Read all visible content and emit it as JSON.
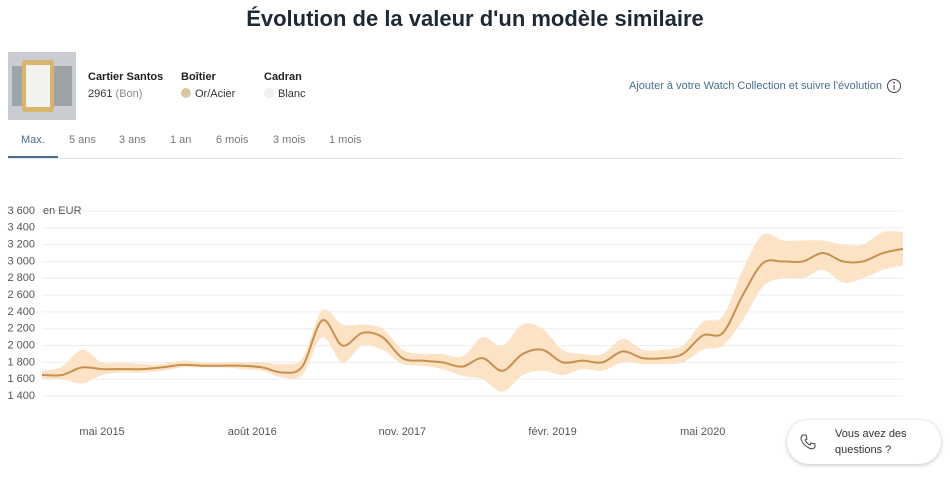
{
  "header": {
    "title": "Évolution de la valeur d'un modèle similaire"
  },
  "watch": {
    "model": "Cartier Santos",
    "reference": "2961",
    "condition": "(Bon)",
    "case_label": "Boîtier",
    "case_value": "Or/Acier",
    "dial_label": "Cadran",
    "dial_value": "Blanc"
  },
  "collection_link": "Ajouter à votre Watch Collection et suivre l'évolution",
  "tabs": {
    "items": [
      "Max.",
      "5 ans",
      "3 ans",
      "1 an",
      "6 mois",
      "3 mois",
      "1 mois"
    ],
    "active": 0
  },
  "chart": {
    "type": "line",
    "unit_label": "en EUR",
    "x": [
      "2014-11",
      "2015-01",
      "2015-03",
      "2015-05",
      "2015-07",
      "2015-09",
      "2015-11",
      "2016-01",
      "2016-03",
      "2016-05",
      "2016-07",
      "2016-09",
      "2016-11",
      "2017-01",
      "2017-03",
      "2017-05",
      "2017-07",
      "2017-09",
      "2017-11",
      "2018-01",
      "2018-03",
      "2018-05",
      "2018-07",
      "2018-09",
      "2018-11",
      "2019-01",
      "2019-03",
      "2019-05",
      "2019-07",
      "2019-09",
      "2019-11",
      "2020-01",
      "2020-03",
      "2020-05",
      "2020-07",
      "2020-09",
      "2020-11",
      "2021-01",
      "2021-03",
      "2021-05",
      "2021-07",
      "2021-09",
      "2021-11",
      "2022-01"
    ],
    "xlim": [
      "2014-11",
      "2022-01"
    ],
    "xticks": [
      {
        "value": "2015-05",
        "label": "mai 2015"
      },
      {
        "value": "2016-08",
        "label": "août 2016"
      },
      {
        "value": "2017-11",
        "label": "nov. 2017"
      },
      {
        "value": "2019-02",
        "label": "févr. 2019"
      },
      {
        "value": "2020-05",
        "label": "mai 2020"
      }
    ],
    "ylim": [
      1400,
      3600
    ],
    "yticks": [
      {
        "value": 1400,
        "label": "1 400"
      },
      {
        "value": 1600,
        "label": "1 600"
      },
      {
        "value": 1800,
        "label": "1 800"
      },
      {
        "value": 2000,
        "label": "2 000"
      },
      {
        "value": 2200,
        "label": "2 200"
      },
      {
        "value": 2400,
        "label": "2 400"
      },
      {
        "value": 2600,
        "label": "2 600"
      },
      {
        "value": 2800,
        "label": "2 800"
      },
      {
        "value": 3000,
        "label": "3 000"
      },
      {
        "value": 3200,
        "label": "3 200"
      },
      {
        "value": 3400,
        "label": "3 400"
      },
      {
        "value": 3600,
        "label": "3 600"
      }
    ],
    "grid": true,
    "line": {
      "color": "#c8904f",
      "values": [
        1650,
        1650,
        1740,
        1720,
        1720,
        1720,
        1740,
        1770,
        1760,
        1760,
        1760,
        1740,
        1680,
        1750,
        2300,
        2000,
        2150,
        2100,
        1850,
        1820,
        1800,
        1750,
        1850,
        1700,
        1900,
        1950,
        1800,
        1820,
        1800,
        1930,
        1850,
        1850,
        1900,
        2120,
        2150,
        2600,
        2980,
        3000,
        3000,
        3100,
        3000,
        3000,
        3100,
        3150
      ]
    },
    "band": {
      "color": "#fde3c6",
      "lower": [
        1600,
        1600,
        1550,
        1650,
        1680,
        1680,
        1700,
        1740,
        1740,
        1740,
        1720,
        1700,
        1620,
        1650,
        2100,
        1800,
        2000,
        1950,
        1780,
        1760,
        1720,
        1640,
        1600,
        1450,
        1650,
        1700,
        1650,
        1720,
        1700,
        1800,
        1780,
        1780,
        1800,
        1950,
        2000,
        2300,
        2700,
        2800,
        2800,
        2900,
        2750,
        2800,
        2900,
        2950
      ],
      "upper": [
        1700,
        1750,
        1950,
        1800,
        1800,
        1780,
        1780,
        1820,
        1800,
        1800,
        1800,
        1800,
        1780,
        1850,
        2420,
        2250,
        2250,
        2200,
        1950,
        1900,
        1900,
        1870,
        2100,
        2000,
        2250,
        2200,
        1950,
        1900,
        1900,
        2080,
        1950,
        1950,
        2000,
        2280,
        2350,
        2900,
        3320,
        3250,
        3250,
        3250,
        3200,
        3200,
        3350,
        3350
      ]
    }
  },
  "chat": {
    "text": "Vous avez des questions ?"
  }
}
